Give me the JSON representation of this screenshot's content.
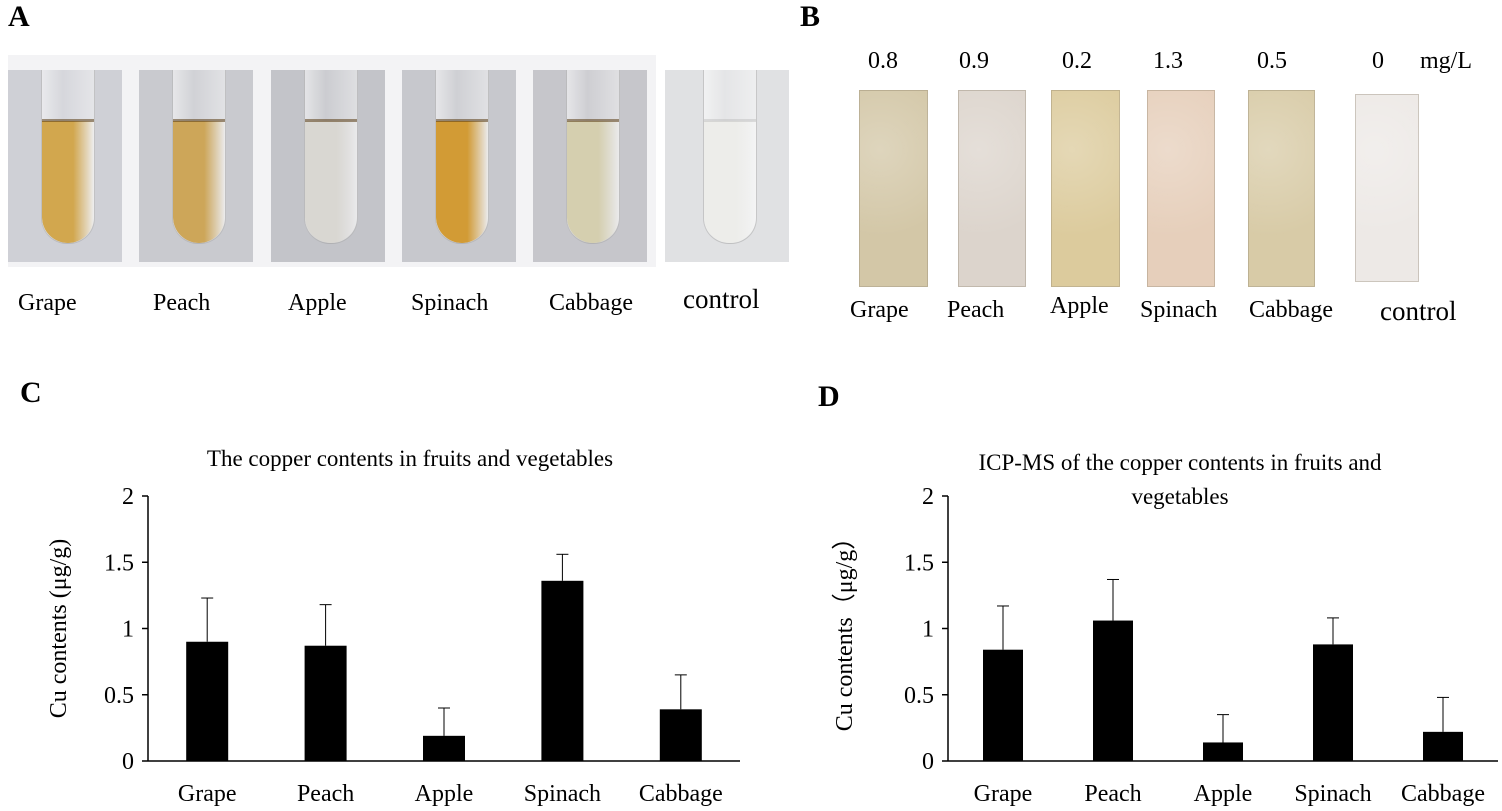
{
  "panel_a": {
    "letter": "A",
    "tubes": [
      {
        "label": "Grape",
        "liquid_color": "#d2a74e",
        "bg_color": "#cfd0d6"
      },
      {
        "label": "Peach",
        "liquid_color": "#cda659",
        "bg_color": "#c9cacf"
      },
      {
        "label": "Apple",
        "liquid_color": "#d9d7d2",
        "bg_color": "#c3c4c9"
      },
      {
        "label": "Spinach",
        "liquid_color": "#d29b35",
        "bg_color": "#c7c8cd"
      },
      {
        "label": "Cabbage",
        "liquid_color": "#d5cfaf",
        "bg_color": "#c6c6cb"
      },
      {
        "label": "control",
        "liquid_color": "#ededea",
        "bg_color": "#e0e1e3"
      }
    ]
  },
  "panel_b": {
    "letter": "B",
    "unit": "mg/L",
    "strips": [
      {
        "label": "Grape",
        "value": "0.8",
        "color": "#d3c7a7"
      },
      {
        "label": "Peach",
        "value": "0.9",
        "color": "#dcd4cc"
      },
      {
        "label": "Apple",
        "value": "0.2",
        "color": "#dccb9d"
      },
      {
        "label": "Spinach",
        "value": "1.3",
        "color": "#e6cfbb"
      },
      {
        "label": "Cabbage",
        "value": "0.5",
        "color": "#d8cba7"
      },
      {
        "label": "control",
        "value": "0",
        "color": "#ede9e6"
      }
    ]
  },
  "chart_data": [
    {
      "panel_letter": "C",
      "type": "bar",
      "title": "The copper contents in fruits and vegetables",
      "title_lines": [
        "The copper contents in fruits and vegetables"
      ],
      "xlabel": "",
      "ylabel": "Cu  contents (μg/g)",
      "ylim": [
        0,
        2
      ],
      "yticks": [
        {
          "value": 0,
          "label": "0"
        },
        {
          "value": 0.5,
          "label": "0.5"
        },
        {
          "value": 1,
          "label": "1"
        },
        {
          "value": 1.5,
          "label": "1.5"
        },
        {
          "value": 2,
          "label": "2"
        }
      ],
      "categories": [
        "Grape",
        "Peach",
        "Apple",
        "Spinach",
        "Cabbage"
      ],
      "values": [
        0.9,
        0.87,
        0.19,
        1.36,
        0.39
      ],
      "error_upper": [
        0.33,
        0.31,
        0.21,
        0.2,
        0.26
      ],
      "bar_color": "#000000",
      "grid": false
    },
    {
      "panel_letter": "D",
      "type": "bar",
      "title": "ICP-MS of the copper contents in fruits and vegetables",
      "title_lines": [
        "ICP-MS of the copper contents in fruits and",
        "vegetables"
      ],
      "xlabel": "",
      "ylabel": "Cu contents（μg/g）",
      "ylim": [
        0,
        2
      ],
      "yticks": [
        {
          "value": 0,
          "label": "0"
        },
        {
          "value": 0.5,
          "label": "0.5"
        },
        {
          "value": 1,
          "label": "1"
        },
        {
          "value": 1.5,
          "label": "1.5"
        },
        {
          "value": 2,
          "label": "2"
        }
      ],
      "categories": [
        "Grape",
        "Peach",
        "Apple",
        "Spinach",
        "Cabbage"
      ],
      "values": [
        0.84,
        1.06,
        0.14,
        0.88,
        0.22
      ],
      "error_upper": [
        0.33,
        0.31,
        0.21,
        0.2,
        0.26
      ],
      "bar_color": "#000000",
      "grid": false
    }
  ]
}
